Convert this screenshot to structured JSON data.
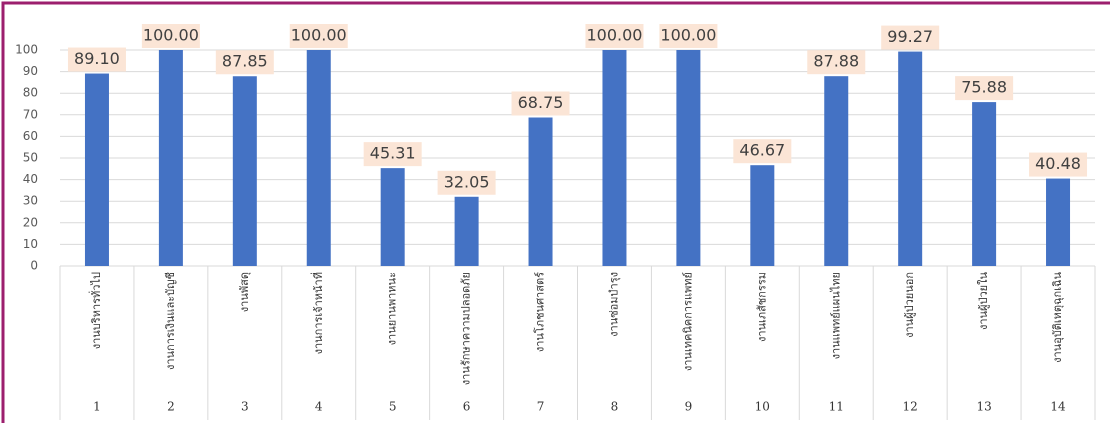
{
  "chart_data": {
    "type": "bar",
    "categories": [
      "งานบริหารทั่วไป",
      "งานการเงินและบัญชี",
      "งานพัสดุ",
      "งานการเจ้าหน้าที่",
      "งานยานพาหนะ",
      "งานรักษาความปลอดภัย",
      "งานโภชนศาสตร์",
      "งานซ่อมบำรุง",
      "งานเทคนิคการแพทย์",
      "งานเภสัชกรรม",
      "งานแพทย์แผนไทย",
      "งานผู้ป่วยนอก",
      "งานผู้ป่วยใน",
      "งานอุบัติเหตุฉุกเฉิน"
    ],
    "category_numbers": [
      1,
      2,
      3,
      4,
      5,
      6,
      7,
      8,
      9,
      10,
      11,
      12,
      13,
      14
    ],
    "values": [
      89.1,
      100,
      87.85,
      100,
      45.31,
      32.05,
      68.75,
      100,
      100,
      46.67,
      87.88,
      99.27,
      75.88,
      40.48
    ],
    "value_labels": [
      "89.10",
      "100.00",
      "87.85",
      "100.00",
      "45.31",
      "32.05",
      "68.75",
      "100.00",
      "100.00",
      "46.67",
      "87.88",
      "99.27",
      "75.88",
      "40.48"
    ],
    "color": "#4472c4",
    "ylim": [
      0,
      100
    ],
    "yticks": [
      0,
      10,
      20,
      30,
      40,
      50,
      60,
      70,
      80,
      90,
      100
    ],
    "grid": true
  }
}
